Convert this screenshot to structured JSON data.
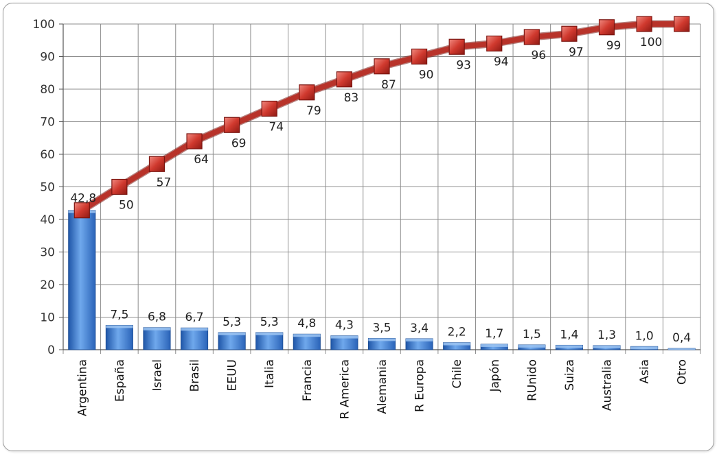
{
  "chart_data": {
    "type": "bar",
    "categories": [
      "Argentina",
      "España",
      "Israel",
      "Brasil",
      "EEUU",
      "Italia",
      "Francia",
      "R America",
      "Alemania",
      "R Europa",
      "Chile",
      "Japón",
      "RUnido",
      "Suiza",
      "Australia",
      "Asia",
      "Otro"
    ],
    "series": [
      {
        "type": "bar",
        "values": [
          42.8,
          7.5,
          6.8,
          6.7,
          5.3,
          5.3,
          4.8,
          4.3,
          3.5,
          3.4,
          2.2,
          1.7,
          1.5,
          1.4,
          1.3,
          1.0,
          0.4
        ],
        "labels": [
          "42,8",
          "7,5",
          "6,8",
          "6,7",
          "5,3",
          "5,3",
          "4,8",
          "4,3",
          "3,5",
          "3,4",
          "2,2",
          "1,7",
          "1,5",
          "1,4",
          "1,3",
          "1,0",
          "0,4"
        ],
        "color": "#3f7fd1"
      },
      {
        "type": "line",
        "values": [
          42.8,
          50,
          57,
          64,
          69,
          74,
          79,
          83,
          87,
          90,
          93,
          94,
          96,
          97,
          99,
          100,
          100
        ],
        "labels": [
          "42,8",
          "50",
          "57",
          "64",
          "69",
          "74",
          "79",
          "83",
          "87",
          "90",
          "93",
          "94",
          "96",
          "97",
          "99",
          "100",
          ""
        ],
        "color": "#c0392b"
      }
    ],
    "ylim": [
      0,
      100
    ],
    "yticks": [
      "0",
      "10",
      "20",
      "30",
      "40",
      "50",
      "60",
      "70",
      "80",
      "90",
      "100"
    ],
    "grid": true,
    "legend": "none"
  }
}
